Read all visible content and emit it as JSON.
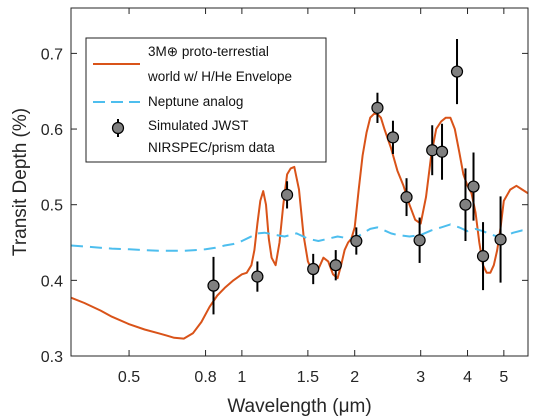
{
  "chart_data": {
    "type": "line",
    "title": "",
    "xlabel": "Wavelength (μm)",
    "ylabel": "Transit Depth (%)",
    "x_scale": "log",
    "xlim": [
      0.35,
      5.8
    ],
    "ylim": [
      0.3,
      0.76
    ],
    "x_ticks": [
      0.5,
      0.8,
      1,
      1.5,
      2,
      3,
      4,
      5
    ],
    "x_tick_labels": [
      "0.5",
      "0.8",
      "1",
      "1.5",
      "2",
      "3",
      "4",
      "5"
    ],
    "y_ticks": [
      0.3,
      0.4,
      0.5,
      0.6,
      0.7
    ],
    "y_tick_labels": [
      "0.3",
      "0.4",
      "0.5",
      "0.6",
      "0.7"
    ],
    "grid": false,
    "legend_position": "top-left",
    "legend": [
      "3M⊕ proto-terrestial",
      "world w/ H/He Envelope",
      "Neptune analog",
      "Simulated JWST",
      "NIRSPEC/prism data"
    ],
    "series": [
      {
        "kind": "model-line",
        "color": "#d95319",
        "legend_index": 0,
        "x": [
          0.35,
          0.38,
          0.42,
          0.45,
          0.5,
          0.55,
          0.6,
          0.63,
          0.66,
          0.7,
          0.74,
          0.78,
          0.82,
          0.86,
          0.9,
          0.95,
          1.0,
          1.03,
          1.06,
          1.08,
          1.1,
          1.12,
          1.14,
          1.16,
          1.18,
          1.2,
          1.23,
          1.26,
          1.29,
          1.32,
          1.35,
          1.38,
          1.42,
          1.46,
          1.5,
          1.55,
          1.6,
          1.65,
          1.7,
          1.75,
          1.8,
          1.84,
          1.88,
          1.92,
          1.96,
          2.0,
          2.05,
          2.1,
          2.15,
          2.2,
          2.25,
          2.3,
          2.35,
          2.4,
          2.5,
          2.6,
          2.7,
          2.8,
          2.9,
          3.0,
          3.1,
          3.2,
          3.3,
          3.4,
          3.5,
          3.6,
          3.7,
          3.8,
          3.9,
          4.0,
          4.1,
          4.2,
          4.3,
          4.4,
          4.5,
          4.6,
          4.7,
          4.8,
          4.9,
          5.0,
          5.2,
          5.4,
          5.6,
          5.8
        ],
        "y": [
          0.377,
          0.37,
          0.36,
          0.352,
          0.342,
          0.335,
          0.33,
          0.327,
          0.324,
          0.323,
          0.33,
          0.345,
          0.365,
          0.38,
          0.39,
          0.4,
          0.408,
          0.41,
          0.42,
          0.44,
          0.475,
          0.505,
          0.518,
          0.5,
          0.455,
          0.43,
          0.42,
          0.45,
          0.5,
          0.54,
          0.548,
          0.55,
          0.52,
          0.46,
          0.425,
          0.41,
          0.415,
          0.43,
          0.425,
          0.408,
          0.403,
          0.42,
          0.44,
          0.45,
          0.455,
          0.47,
          0.52,
          0.565,
          0.595,
          0.615,
          0.62,
          0.62,
          0.615,
          0.6,
          0.575,
          0.545,
          0.525,
          0.5,
          0.48,
          0.475,
          0.51,
          0.565,
          0.6,
          0.61,
          0.615,
          0.615,
          0.6,
          0.57,
          0.54,
          0.525,
          0.515,
          0.49,
          0.45,
          0.42,
          0.41,
          0.41,
          0.42,
          0.44,
          0.47,
          0.505,
          0.52,
          0.525,
          0.52,
          0.515
        ]
      },
      {
        "kind": "model-line",
        "style": "dashed",
        "color": "#4dbeee",
        "legend_index": 2,
        "x": [
          0.35,
          0.4,
          0.45,
          0.5,
          0.55,
          0.6,
          0.65,
          0.7,
          0.75,
          0.8,
          0.85,
          0.9,
          0.95,
          1.0,
          1.05,
          1.1,
          1.15,
          1.2,
          1.3,
          1.4,
          1.5,
          1.6,
          1.7,
          1.8,
          1.9,
          2.0,
          2.1,
          2.2,
          2.3,
          2.4,
          2.5,
          2.6,
          2.8,
          3.0,
          3.2,
          3.4,
          3.6,
          3.8,
          4.0,
          4.2,
          4.4,
          4.6,
          4.8,
          5.0,
          5.3,
          5.6,
          5.8
        ],
        "y": [
          0.446,
          0.444,
          0.442,
          0.441,
          0.44,
          0.439,
          0.439,
          0.439,
          0.44,
          0.441,
          0.443,
          0.446,
          0.448,
          0.452,
          0.457,
          0.462,
          0.463,
          0.461,
          0.458,
          0.462,
          0.455,
          0.452,
          0.455,
          0.458,
          0.456,
          0.455,
          0.462,
          0.468,
          0.47,
          0.466,
          0.462,
          0.46,
          0.458,
          0.46,
          0.466,
          0.47,
          0.474,
          0.47,
          0.465,
          0.468,
          0.465,
          0.461,
          0.458,
          0.458,
          0.463,
          0.466,
          0.466
        ]
      },
      {
        "kind": "data-points",
        "color": "#808080",
        "edgecolor": "#000000",
        "legend_index": 3,
        "points": [
          {
            "x": 0.84,
            "y": 0.393,
            "err": 0.038
          },
          {
            "x": 1.1,
            "y": 0.405,
            "err": 0.02
          },
          {
            "x": 1.32,
            "y": 0.513,
            "err": 0.018
          },
          {
            "x": 1.55,
            "y": 0.415,
            "err": 0.02
          },
          {
            "x": 1.78,
            "y": 0.42,
            "err": 0.02
          },
          {
            "x": 2.02,
            "y": 0.452,
            "err": 0.018
          },
          {
            "x": 2.3,
            "y": 0.628,
            "err": 0.02
          },
          {
            "x": 2.53,
            "y": 0.589,
            "err": 0.022
          },
          {
            "x": 2.75,
            "y": 0.51,
            "err": 0.025
          },
          {
            "x": 2.98,
            "y": 0.453,
            "err": 0.03
          },
          {
            "x": 3.22,
            "y": 0.572,
            "err": 0.033
          },
          {
            "x": 3.42,
            "y": 0.57,
            "err": 0.037
          },
          {
            "x": 3.75,
            "y": 0.676,
            "err": 0.043
          },
          {
            "x": 3.95,
            "y": 0.5,
            "err": 0.048
          },
          {
            "x": 4.15,
            "y": 0.524,
            "err": 0.045
          },
          {
            "x": 4.4,
            "y": 0.432,
            "err": 0.045
          },
          {
            "x": 4.9,
            "y": 0.454,
            "err": 0.057
          }
        ]
      }
    ]
  }
}
